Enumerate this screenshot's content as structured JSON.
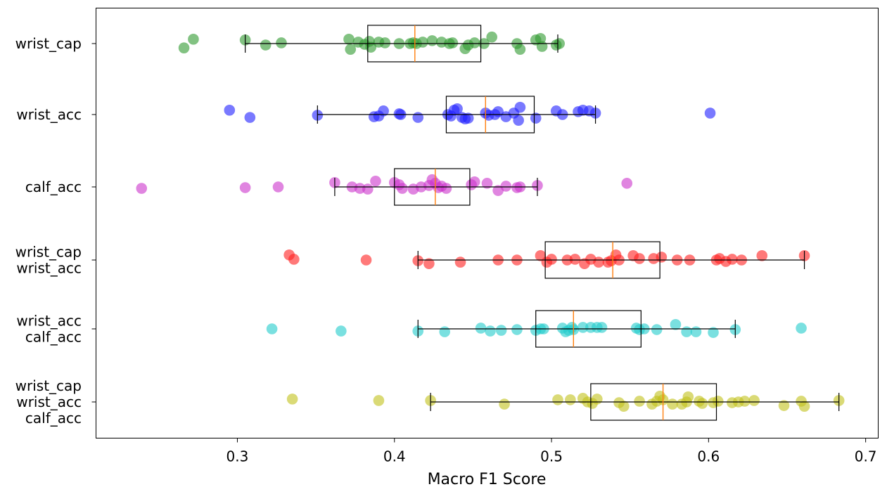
{
  "chart_data": {
    "type": "box-strip",
    "title": "",
    "xlabel": "Macro F1 Score",
    "ylabel": "",
    "xlim": [
      0.21,
      0.708
    ],
    "xticks": [
      0.3,
      0.4,
      0.5,
      0.6,
      0.7
    ],
    "xtick_labels": [
      "0.3",
      "0.4",
      "0.5",
      "0.6",
      "0.7"
    ],
    "grid": false,
    "categories": [
      {
        "name": "wrist_cap",
        "label_lines": [
          "wrist_cap"
        ],
        "color": "#2e9a2e",
        "box": {
          "whisker_low": 0.305,
          "q1": 0.383,
          "median": 0.413,
          "q3": 0.455,
          "whisker_high": 0.504
        },
        "points": [
          {
            "x": 0.266,
            "j": -0.06
          },
          {
            "x": 0.272,
            "j": 0.06
          },
          {
            "x": 0.305,
            "j": 0.05
          },
          {
            "x": 0.318,
            "j": -0.02
          },
          {
            "x": 0.328,
            "j": 0.01
          },
          {
            "x": 0.371,
            "j": 0.06
          },
          {
            "x": 0.372,
            "j": -0.08
          },
          {
            "x": 0.377,
            "j": 0.02
          },
          {
            "x": 0.381,
            "j": -0.01
          },
          {
            "x": 0.384,
            "j": 0.03
          },
          {
            "x": 0.385,
            "j": -0.05
          },
          {
            "x": 0.39,
            "j": 0.02
          },
          {
            "x": 0.394,
            "j": 0.01
          },
          {
            "x": 0.403,
            "j": 0.0
          },
          {
            "x": 0.41,
            "j": 0.0
          },
          {
            "x": 0.412,
            "j": 0.01
          },
          {
            "x": 0.414,
            "j": 0.0
          },
          {
            "x": 0.418,
            "j": 0.02
          },
          {
            "x": 0.424,
            "j": 0.04
          },
          {
            "x": 0.43,
            "j": 0.02
          },
          {
            "x": 0.435,
            "j": 0.0
          },
          {
            "x": 0.437,
            "j": 0.01
          },
          {
            "x": 0.445,
            "j": -0.07
          },
          {
            "x": 0.447,
            "j": -0.02
          },
          {
            "x": 0.451,
            "j": 0.01
          },
          {
            "x": 0.457,
            "j": 0.0
          },
          {
            "x": 0.462,
            "j": 0.09
          },
          {
            "x": 0.478,
            "j": 0.0
          },
          {
            "x": 0.48,
            "j": -0.08
          },
          {
            "x": 0.49,
            "j": 0.05
          },
          {
            "x": 0.493,
            "j": 0.07
          },
          {
            "x": 0.494,
            "j": -0.04
          },
          {
            "x": 0.503,
            "j": -0.02
          },
          {
            "x": 0.505,
            "j": 0.0
          }
        ]
      },
      {
        "name": "wrist_acc",
        "label_lines": [
          "wrist_acc"
        ],
        "color": "#2020ff",
        "box": {
          "whisker_low": 0.351,
          "q1": 0.433,
          "median": 0.458,
          "q3": 0.489,
          "whisker_high": 0.528
        },
        "points": [
          {
            "x": 0.295,
            "j": 0.06
          },
          {
            "x": 0.308,
            "j": -0.04
          },
          {
            "x": 0.351,
            "j": -0.01
          },
          {
            "x": 0.387,
            "j": -0.03
          },
          {
            "x": 0.39,
            "j": -0.02
          },
          {
            "x": 0.393,
            "j": 0.05
          },
          {
            "x": 0.403,
            "j": 0.01
          },
          {
            "x": 0.404,
            "j": 0.0
          },
          {
            "x": 0.415,
            "j": -0.04
          },
          {
            "x": 0.434,
            "j": 0.0
          },
          {
            "x": 0.436,
            "j": -0.02
          },
          {
            "x": 0.438,
            "j": 0.06
          },
          {
            "x": 0.44,
            "j": 0.08
          },
          {
            "x": 0.443,
            "j": -0.04
          },
          {
            "x": 0.445,
            "j": -0.06
          },
          {
            "x": 0.447,
            "j": -0.05
          },
          {
            "x": 0.458,
            "j": 0.02
          },
          {
            "x": 0.46,
            "j": -0.01
          },
          {
            "x": 0.464,
            "j": 0.0
          },
          {
            "x": 0.466,
            "j": 0.04
          },
          {
            "x": 0.471,
            "j": -0.03
          },
          {
            "x": 0.476,
            "j": 0.02
          },
          {
            "x": 0.479,
            "j": -0.08
          },
          {
            "x": 0.48,
            "j": 0.1
          },
          {
            "x": 0.49,
            "j": -0.05
          },
          {
            "x": 0.503,
            "j": 0.05
          },
          {
            "x": 0.507,
            "j": 0.0
          },
          {
            "x": 0.517,
            "j": 0.04
          },
          {
            "x": 0.52,
            "j": 0.06
          },
          {
            "x": 0.524,
            "j": 0.05
          },
          {
            "x": 0.528,
            "j": 0.02
          },
          {
            "x": 0.601,
            "j": 0.02
          }
        ]
      },
      {
        "name": "calf_acc",
        "label_lines": [
          "calf_acc"
        ],
        "color": "#cc33cc",
        "box": {
          "whisker_low": 0.362,
          "q1": 0.4,
          "median": 0.426,
          "q3": 0.448,
          "whisker_high": 0.491
        },
        "points": [
          {
            "x": 0.239,
            "j": -0.02
          },
          {
            "x": 0.305,
            "j": -0.01
          },
          {
            "x": 0.326,
            "j": 0.0
          },
          {
            "x": 0.362,
            "j": 0.06
          },
          {
            "x": 0.373,
            "j": 0.0
          },
          {
            "x": 0.378,
            "j": -0.02
          },
          {
            "x": 0.383,
            "j": -0.03
          },
          {
            "x": 0.388,
            "j": 0.08
          },
          {
            "x": 0.4,
            "j": 0.06
          },
          {
            "x": 0.403,
            "j": 0.03
          },
          {
            "x": 0.405,
            "j": -0.02
          },
          {
            "x": 0.412,
            "j": -0.03
          },
          {
            "x": 0.417,
            "j": 0.0
          },
          {
            "x": 0.422,
            "j": 0.02
          },
          {
            "x": 0.424,
            "j": 0.1
          },
          {
            "x": 0.426,
            "j": 0.05
          },
          {
            "x": 0.428,
            "j": -0.01
          },
          {
            "x": 0.43,
            "j": 0.01
          },
          {
            "x": 0.433,
            "j": -0.02
          },
          {
            "x": 0.449,
            "j": 0.03
          },
          {
            "x": 0.451,
            "j": 0.07
          },
          {
            "x": 0.459,
            "j": 0.05
          },
          {
            "x": 0.466,
            "j": -0.05
          },
          {
            "x": 0.471,
            "j": 0.01
          },
          {
            "x": 0.478,
            "j": -0.01
          },
          {
            "x": 0.48,
            "j": 0.0
          },
          {
            "x": 0.491,
            "j": 0.02
          },
          {
            "x": 0.548,
            "j": 0.05
          }
        ]
      },
      {
        "name": "wrist_cap + wrist_acc",
        "label_lines": [
          "wrist_cap",
          "wrist_acc"
        ],
        "color": "#ff2020",
        "box": {
          "whisker_low": 0.415,
          "q1": 0.496,
          "median": 0.539,
          "q3": 0.569,
          "whisker_high": 0.661
        },
        "points": [
          {
            "x": 0.333,
            "j": 0.07
          },
          {
            "x": 0.336,
            "j": 0.01
          },
          {
            "x": 0.382,
            "j": 0.0
          },
          {
            "x": 0.415,
            "j": -0.01
          },
          {
            "x": 0.422,
            "j": -0.05
          },
          {
            "x": 0.442,
            "j": -0.03
          },
          {
            "x": 0.466,
            "j": 0.0
          },
          {
            "x": 0.478,
            "j": 0.0
          },
          {
            "x": 0.493,
            "j": 0.06
          },
          {
            "x": 0.497,
            "j": -0.03
          },
          {
            "x": 0.5,
            "j": 0.01
          },
          {
            "x": 0.51,
            "j": 0.0
          },
          {
            "x": 0.515,
            "j": 0.01
          },
          {
            "x": 0.521,
            "j": -0.05
          },
          {
            "x": 0.525,
            "j": 0.01
          },
          {
            "x": 0.53,
            "j": -0.03
          },
          {
            "x": 0.536,
            "j": -0.03
          },
          {
            "x": 0.538,
            "j": -0.01
          },
          {
            "x": 0.541,
            "j": 0.07
          },
          {
            "x": 0.543,
            "j": 0.0
          },
          {
            "x": 0.552,
            "j": 0.06
          },
          {
            "x": 0.556,
            "j": 0.02
          },
          {
            "x": 0.565,
            "j": 0.02
          },
          {
            "x": 0.57,
            "j": 0.04
          },
          {
            "x": 0.58,
            "j": 0.0
          },
          {
            "x": 0.588,
            "j": 0.0
          },
          {
            "x": 0.605,
            "j": 0.0
          },
          {
            "x": 0.607,
            "j": 0.02
          },
          {
            "x": 0.611,
            "j": -0.02
          },
          {
            "x": 0.615,
            "j": 0.01
          },
          {
            "x": 0.621,
            "j": 0.0
          },
          {
            "x": 0.634,
            "j": 0.06
          },
          {
            "x": 0.661,
            "j": 0.06
          }
        ]
      },
      {
        "name": "wrist_acc + calf_acc",
        "label_lines": [
          "wrist_acc",
          "calf_acc"
        ],
        "color": "#22cccc",
        "box": {
          "whisker_low": 0.415,
          "q1": 0.49,
          "median": 0.514,
          "q3": 0.557,
          "whisker_high": 0.617
        },
        "points": [
          {
            "x": 0.322,
            "j": 0.0
          },
          {
            "x": 0.366,
            "j": -0.03
          },
          {
            "x": 0.415,
            "j": -0.03
          },
          {
            "x": 0.432,
            "j": -0.04
          },
          {
            "x": 0.455,
            "j": 0.01
          },
          {
            "x": 0.461,
            "j": -0.03
          },
          {
            "x": 0.468,
            "j": -0.02
          },
          {
            "x": 0.478,
            "j": -0.01
          },
          {
            "x": 0.49,
            "j": -0.02
          },
          {
            "x": 0.493,
            "j": 0.0
          },
          {
            "x": 0.495,
            "j": 0.0
          },
          {
            "x": 0.507,
            "j": 0.01
          },
          {
            "x": 0.509,
            "j": -0.04
          },
          {
            "x": 0.511,
            "j": -0.02
          },
          {
            "x": 0.513,
            "j": 0.02
          },
          {
            "x": 0.514,
            "j": -0.01
          },
          {
            "x": 0.52,
            "j": 0.02
          },
          {
            "x": 0.525,
            "j": 0.02
          },
          {
            "x": 0.529,
            "j": 0.02
          },
          {
            "x": 0.532,
            "j": 0.02
          },
          {
            "x": 0.554,
            "j": 0.01
          },
          {
            "x": 0.556,
            "j": -0.01
          },
          {
            "x": 0.559,
            "j": 0.0
          },
          {
            "x": 0.567,
            "j": -0.01
          },
          {
            "x": 0.579,
            "j": 0.06
          },
          {
            "x": 0.586,
            "j": -0.04
          },
          {
            "x": 0.592,
            "j": -0.04
          },
          {
            "x": 0.603,
            "j": -0.05
          },
          {
            "x": 0.617,
            "j": -0.01
          },
          {
            "x": 0.659,
            "j": 0.01
          }
        ]
      },
      {
        "name": "wrist_cap + wrist_acc + calf_acc",
        "label_lines": [
          "wrist_cap",
          "wrist_acc",
          "calf_acc"
        ],
        "color": "#c2c21a",
        "box": {
          "whisker_low": 0.423,
          "q1": 0.525,
          "median": 0.571,
          "q3": 0.605,
          "whisker_high": 0.683
        },
        "points": [
          {
            "x": 0.335,
            "j": 0.04
          },
          {
            "x": 0.39,
            "j": 0.02
          },
          {
            "x": 0.423,
            "j": 0.02
          },
          {
            "x": 0.47,
            "j": -0.03
          },
          {
            "x": 0.504,
            "j": 0.03
          },
          {
            "x": 0.512,
            "j": 0.03
          },
          {
            "x": 0.52,
            "j": 0.05
          },
          {
            "x": 0.523,
            "j": 0.0
          },
          {
            "x": 0.526,
            "j": -0.02
          },
          {
            "x": 0.529,
            "j": 0.04
          },
          {
            "x": 0.543,
            "j": -0.01
          },
          {
            "x": 0.546,
            "j": -0.06
          },
          {
            "x": 0.556,
            "j": 0.01
          },
          {
            "x": 0.564,
            "j": -0.03
          },
          {
            "x": 0.567,
            "j": 0.01
          },
          {
            "x": 0.569,
            "j": 0.08
          },
          {
            "x": 0.571,
            "j": 0.03
          },
          {
            "x": 0.577,
            "j": -0.03
          },
          {
            "x": 0.583,
            "j": -0.03
          },
          {
            "x": 0.586,
            "j": 0.0
          },
          {
            "x": 0.587,
            "j": 0.07
          },
          {
            "x": 0.594,
            "j": 0.01
          },
          {
            "x": 0.596,
            "j": -0.02
          },
          {
            "x": 0.603,
            "j": -0.01
          },
          {
            "x": 0.606,
            "j": 0.01
          },
          {
            "x": 0.615,
            "j": -0.01
          },
          {
            "x": 0.619,
            "j": 0.0
          },
          {
            "x": 0.623,
            "j": 0.01
          },
          {
            "x": 0.629,
            "j": 0.02
          },
          {
            "x": 0.648,
            "j": -0.05
          },
          {
            "x": 0.659,
            "j": 0.01
          },
          {
            "x": 0.661,
            "j": -0.06
          },
          {
            "x": 0.683,
            "j": 0.02
          }
        ]
      }
    ]
  }
}
